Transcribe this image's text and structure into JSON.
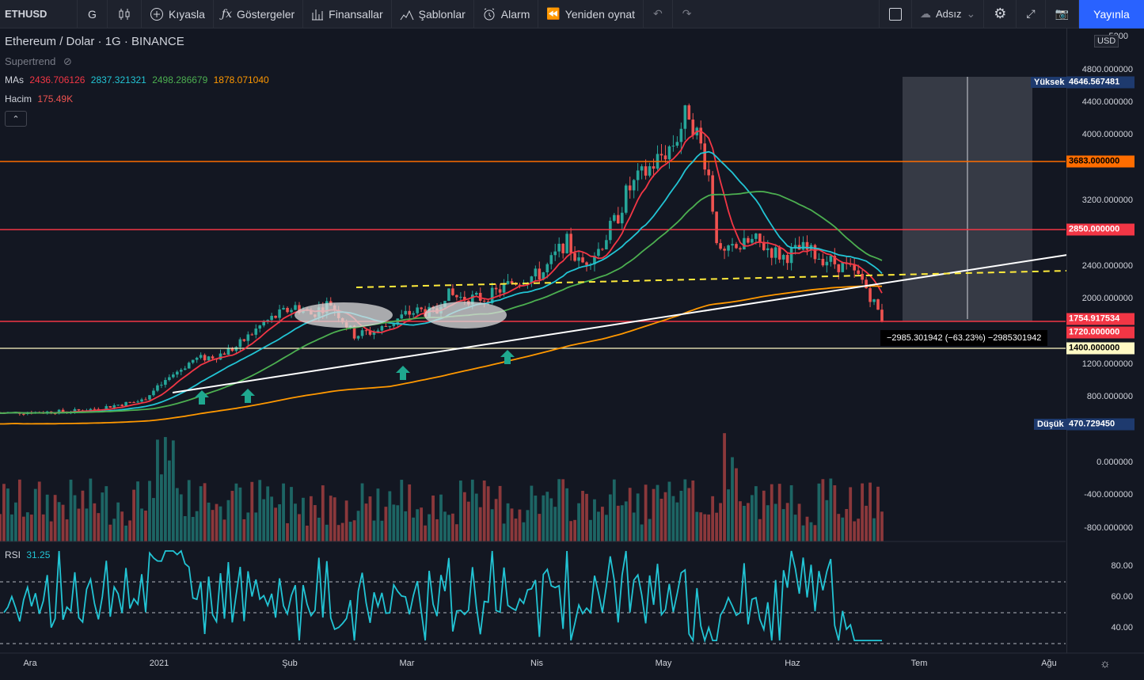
{
  "toolbar": {
    "symbol": "ETHUSD",
    "interval": "G",
    "compare": "Kıyasla",
    "indicators": "Göstergeler",
    "financials": "Finansallar",
    "templates": "Şablonlar",
    "alert": "Alarm",
    "replay": "Yeniden oynat",
    "layout_name": "Adsız",
    "publish": "Yayınla"
  },
  "legend": {
    "title": "Ethereum / Dolar · 1G · BINANCE",
    "supertrend": "Supertrend",
    "mas_label": "MAs",
    "ma_values": [
      "2436.706126",
      "2837.321321",
      "2498.286679",
      "1878.071040"
    ],
    "ma_colors": [
      "#f23645",
      "#22ab94",
      "#4caf50",
      "#ff9800"
    ],
    "volume_label": "Hacim",
    "volume_value": "175.49K",
    "rsi_label": "RSI",
    "rsi_value": "31.25"
  },
  "price_scale": {
    "currency": "USD",
    "top_cut": "5200",
    "ticks": [
      "4800.000000",
      "4400.000000",
      "4000.000000",
      "3200.000000",
      "2400.000000",
      "2000.000000",
      "1200.000000",
      "800.000000",
      "0.000000",
      "-400.000000",
      "-800.000000"
    ],
    "tags": {
      "high_label": "Yüksek",
      "high_value": "4646.567481",
      "level_3683": "3683.000000",
      "level_2850": "2850.000000",
      "price_now": "1754.917534",
      "level_1720": "1720.000000",
      "level_1400": "1400.000000",
      "low_label": "Düşük",
      "low_value": "470.729450"
    },
    "measure": "−2985.301942 (−63.23%) −2985301942"
  },
  "rsi_scale": {
    "ticks": [
      "80.00",
      "60.00",
      "40.00"
    ]
  },
  "time_axis": [
    "Ara",
    "2021",
    "Şub",
    "Mar",
    "Nis",
    "May",
    "Haz",
    "Tem",
    "Ağu"
  ],
  "colors": {
    "up": "#26a69a",
    "down": "#ef5350",
    "bg": "#131722",
    "accent": "#2962ff"
  }
}
